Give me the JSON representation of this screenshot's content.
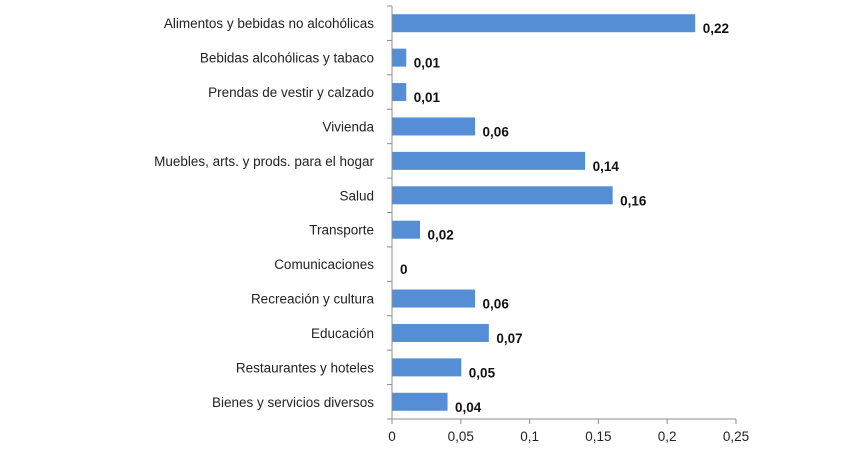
{
  "chart_data": {
    "type": "bar",
    "orientation": "horizontal",
    "title": "",
    "xlabel": "",
    "ylabel": "",
    "categories": [
      "Alimentos y bebidas no alcohólicas",
      "Bebidas alcohólicas y tabaco",
      "Prendas de vestir y calzado",
      "Vivienda",
      "Muebles, arts. y prods. para el hogar",
      "Salud",
      "Transporte",
      "Comunicaciones",
      "Recreación y cultura",
      "Educación",
      "Restaurantes y hoteles",
      "Bienes y servicios diversos"
    ],
    "values": [
      0.22,
      0.01,
      0.01,
      0.06,
      0.14,
      0.16,
      0.02,
      0,
      0.06,
      0.07,
      0.05,
      0.04
    ],
    "value_labels": [
      "0,22",
      "0,01",
      "0,01",
      "0,06",
      "0,14",
      "0,16",
      "0,02",
      "0",
      "0,06",
      "0,07",
      "0,05",
      "0,04"
    ],
    "xlim": [
      0,
      0.25
    ],
    "xticks": [
      0,
      0.05,
      0.1,
      0.15,
      0.2,
      0.25
    ],
    "xtick_labels": [
      "0",
      "0,05",
      "0,1",
      "0,15",
      "0,2",
      "0,25"
    ],
    "grid": false,
    "legend": "none",
    "bar_color": "#558ED5"
  }
}
